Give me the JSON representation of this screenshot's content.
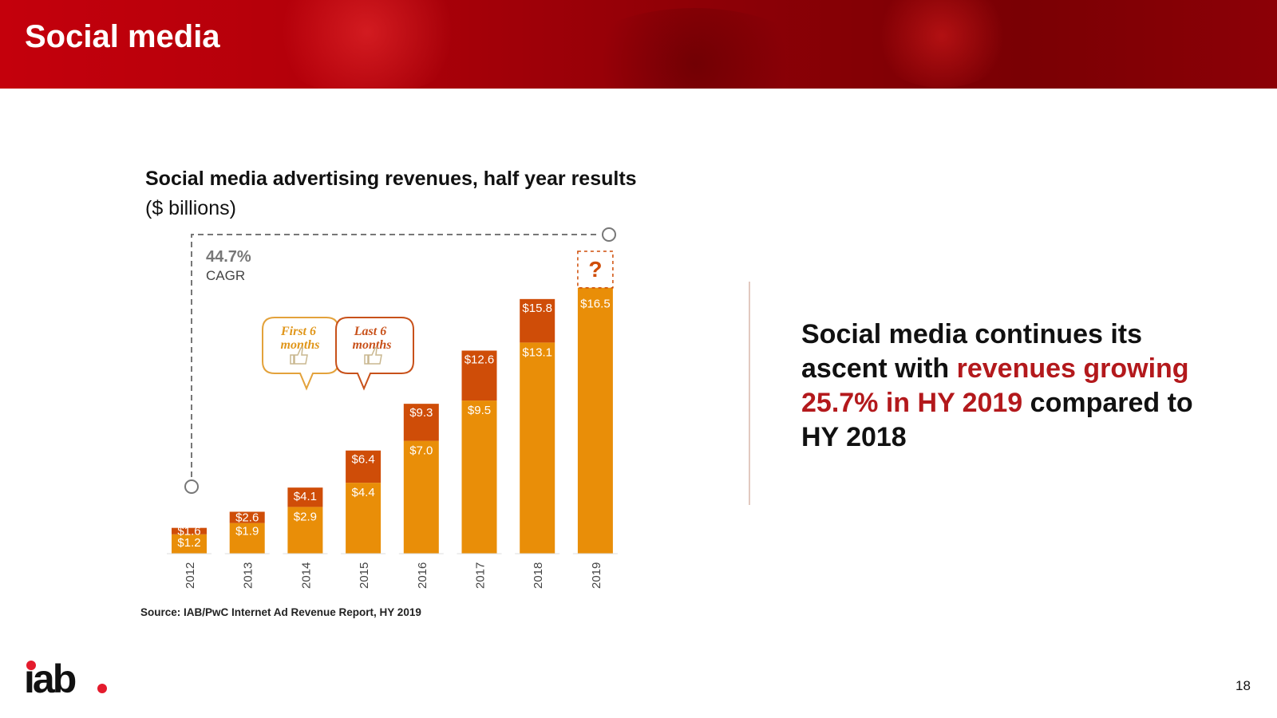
{
  "colors": {
    "header_red": "#b3000a",
    "first_half": "#e98e08",
    "second_half": "#cf4d08",
    "highlight": "#b3191c",
    "logo_accent": "#e41b2d"
  },
  "header": {
    "title": "Social media"
  },
  "chart_data": {
    "type": "bar",
    "stacked": true,
    "title": "Social media advertising revenues, half year results",
    "subtitle": "($ billions)",
    "categories": [
      "2012",
      "2013",
      "2014",
      "2015",
      "2016",
      "2017",
      "2018",
      "2019"
    ],
    "series": [
      {
        "name": "First 6 months",
        "values": [
          1.2,
          1.9,
          2.9,
          4.4,
          7.0,
          9.5,
          13.1,
          16.5
        ]
      },
      {
        "name": "Last 6 months",
        "values": [
          0.4,
          0.7,
          1.2,
          2.0,
          2.3,
          3.1,
          2.7,
          null
        ]
      }
    ],
    "data_labels": {
      "first": [
        "$1.2",
        "$1.9",
        "$2.9",
        "$4.4",
        "$7.0",
        "$9.5",
        "$13.1",
        "$16.5"
      ],
      "total": [
        "$1.6",
        "$2.6",
        "$4.1",
        "$6.4",
        "$9.3",
        "$12.6",
        "$15.8",
        null
      ]
    },
    "unknown_marker": "?",
    "cagr": {
      "value": "44.7%",
      "label": "CAGR"
    },
    "legend": [
      "First 6 months",
      "Last 6 months"
    ],
    "ylim": [
      0,
      19
    ]
  },
  "source": "Source: IAB/PwC Internet Ad Revenue Report, HY 2019",
  "callout": {
    "part1": "Social media continues its ascent with ",
    "highlight": "revenues growing 25.7% in HY 2019",
    "part2": " compared to HY 2018"
  },
  "logo": {
    "text": "iab"
  },
  "page_number": "18"
}
